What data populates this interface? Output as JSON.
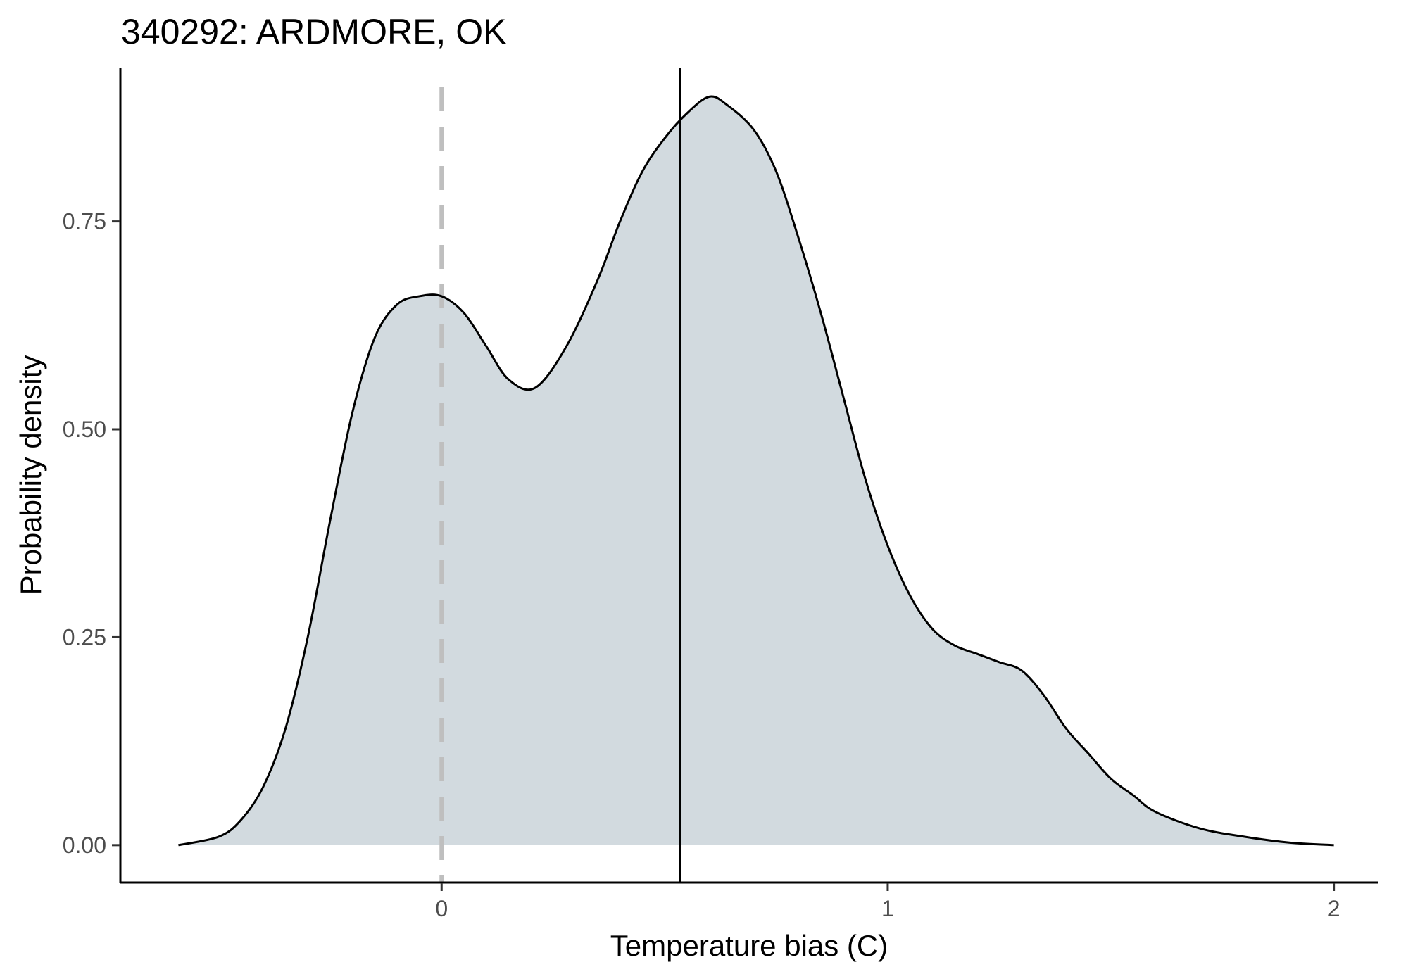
{
  "chart_data": {
    "type": "area",
    "title": "340292: ARDMORE, OK",
    "xlabel": "Temperature bias (C)",
    "ylabel": "Probability density",
    "xlim": [
      -0.72,
      2.1
    ],
    "ylim": [
      -0.045,
      0.935
    ],
    "x_ticks": [
      {
        "value": 0,
        "label": "0"
      },
      {
        "value": 1,
        "label": "1"
      },
      {
        "value": 2,
        "label": "2"
      }
    ],
    "y_ticks": [
      {
        "value": 0,
        "label": "0.00"
      },
      {
        "value": 0.25,
        "label": "0.25"
      },
      {
        "value": 0.5,
        "label": "0.50"
      },
      {
        "value": 0.75,
        "label": "0.75"
      }
    ],
    "grid": false,
    "fill_color": "#d2dadf",
    "line_color": "#000000",
    "reference_line": {
      "x": 0,
      "style": "dashed",
      "color": "#bfbfbf"
    },
    "mean_line": {
      "x": 0.535,
      "style": "solid",
      "color": "#000000"
    },
    "series": [
      {
        "x": [
          -0.59,
          -0.5,
          -0.45,
          -0.4,
          -0.35,
          -0.3,
          -0.25,
          -0.2,
          -0.15,
          -0.1,
          -0.05,
          0,
          0.05,
          0.1,
          0.15,
          0.21,
          0.28,
          0.35,
          0.4,
          0.45,
          0.5,
          0.55,
          0.6,
          0.64,
          0.7,
          0.75,
          0.8,
          0.85,
          0.9,
          0.95,
          1.0,
          1.05,
          1.1,
          1.15,
          1.2,
          1.25,
          1.3,
          1.35,
          1.4,
          1.45,
          1.5,
          1.55,
          1.6,
          1.7,
          1.8,
          1.9,
          2.0
        ],
        "y": [
          0.0,
          0.01,
          0.03,
          0.07,
          0.14,
          0.25,
          0.39,
          0.52,
          0.61,
          0.65,
          0.66,
          0.66,
          0.64,
          0.6,
          0.56,
          0.55,
          0.6,
          0.68,
          0.75,
          0.81,
          0.85,
          0.88,
          0.9,
          0.89,
          0.86,
          0.81,
          0.73,
          0.64,
          0.54,
          0.44,
          0.36,
          0.3,
          0.26,
          0.24,
          0.23,
          0.22,
          0.21,
          0.18,
          0.14,
          0.11,
          0.08,
          0.06,
          0.04,
          0.02,
          0.01,
          0.003,
          0.0
        ]
      }
    ]
  }
}
